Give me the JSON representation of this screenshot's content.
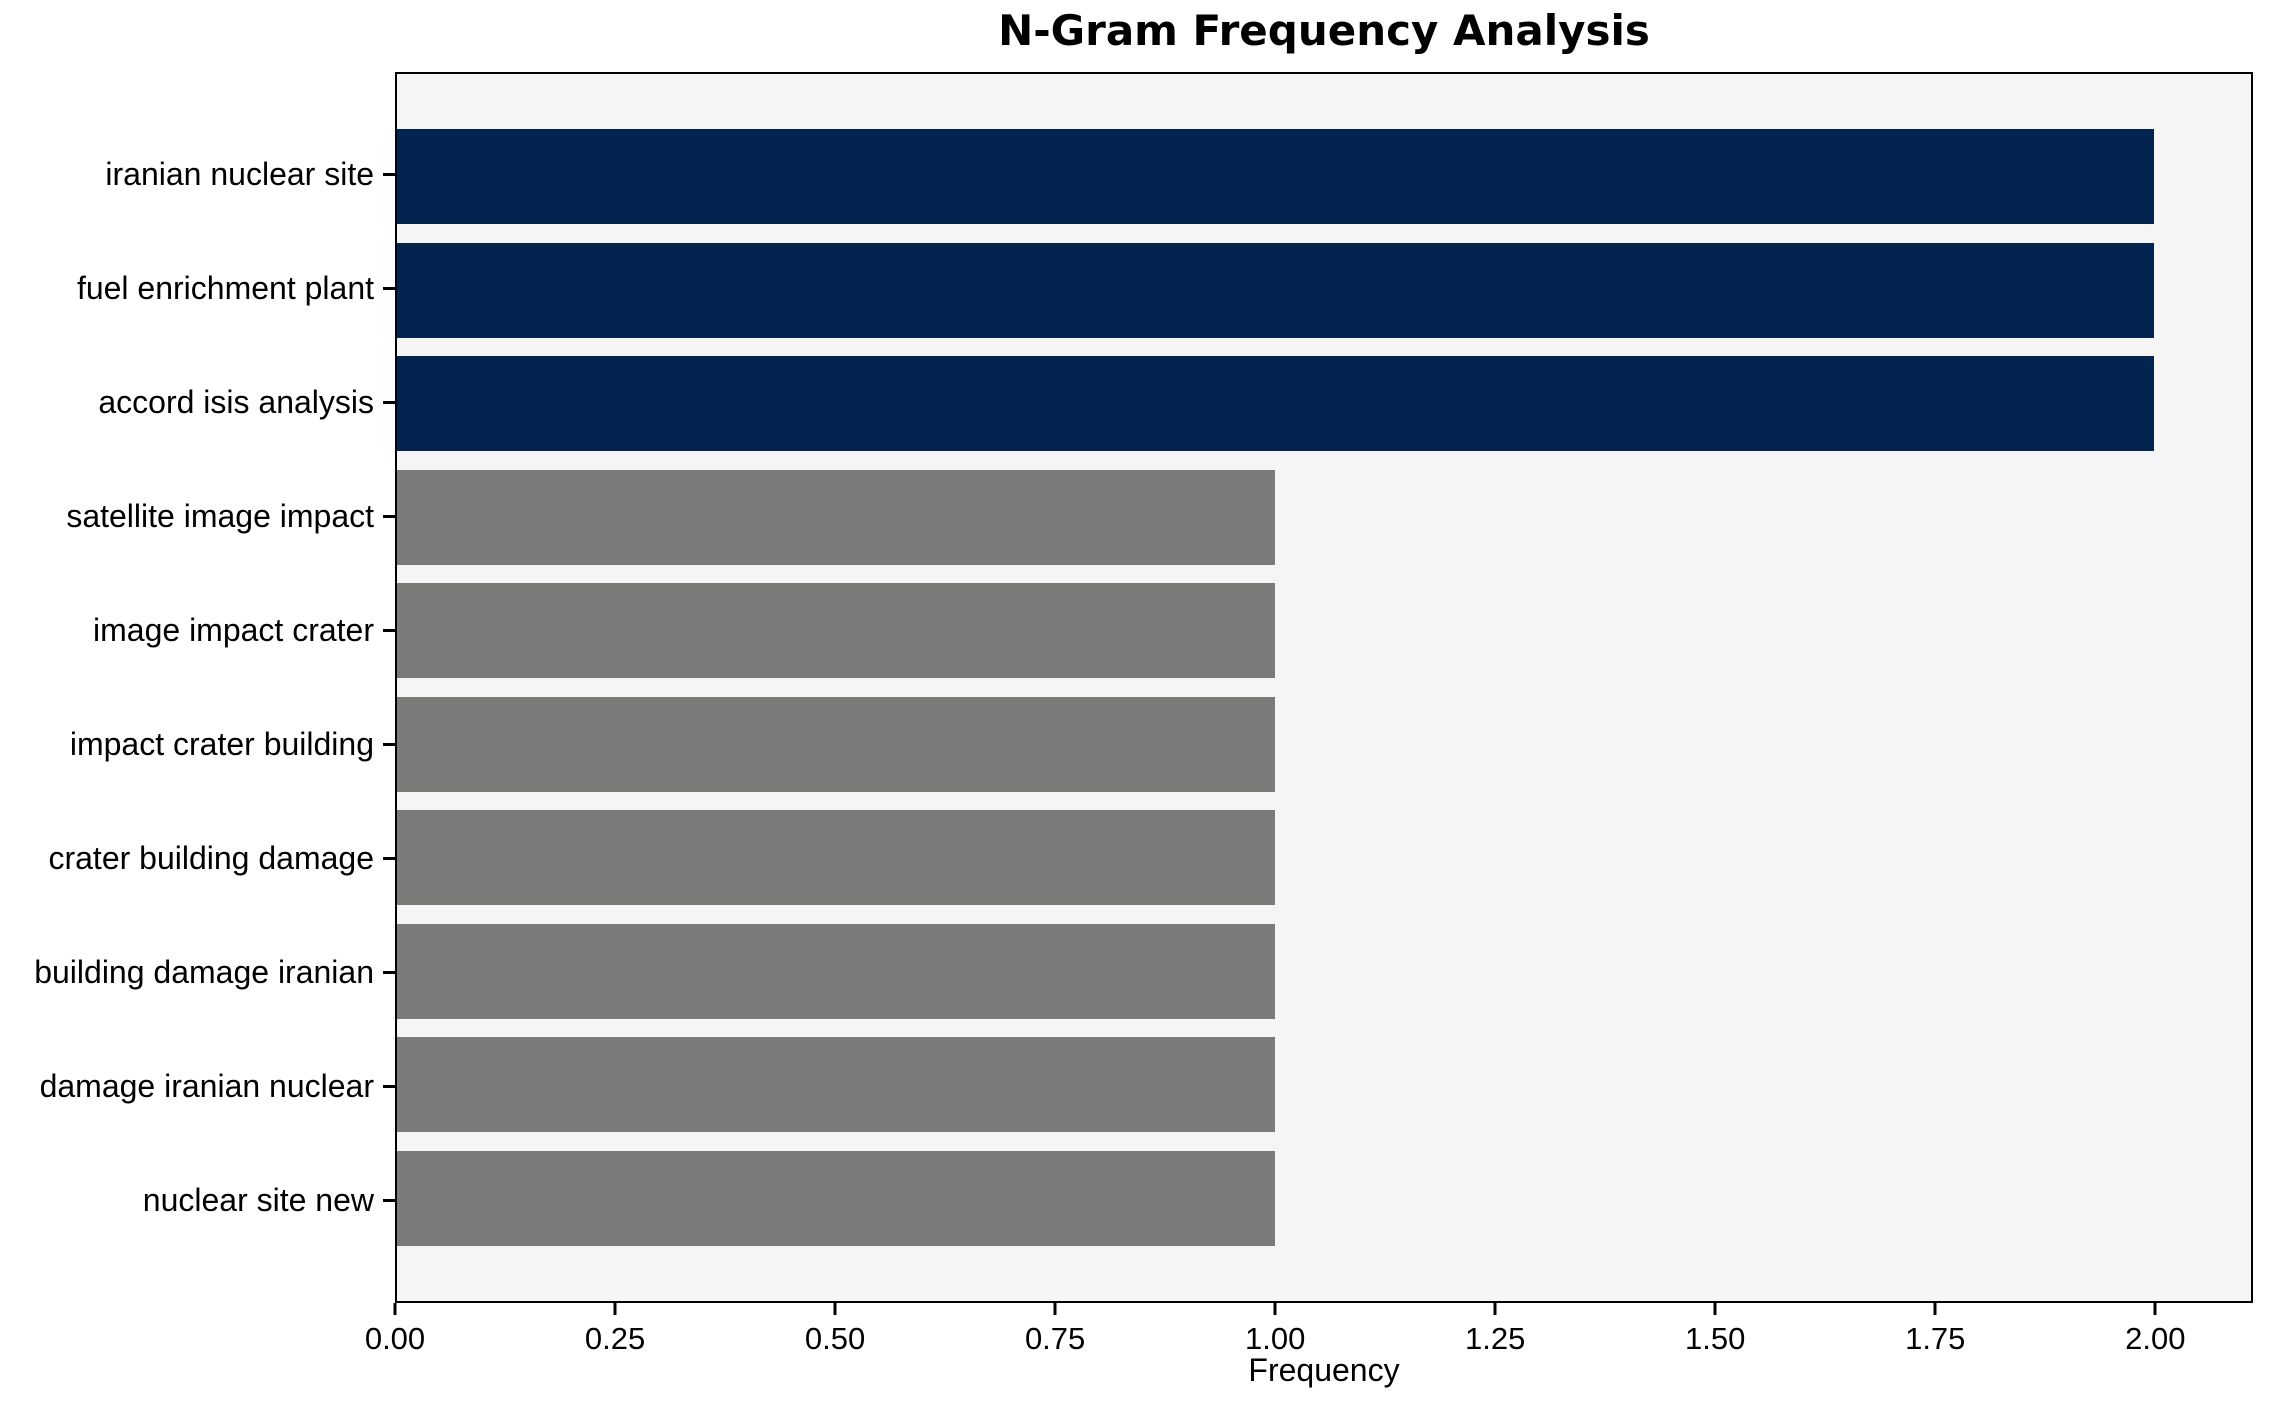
{
  "chart_data": {
    "type": "bar",
    "orientation": "horizontal",
    "title": "N-Gram Frequency Analysis",
    "xlabel": "Frequency",
    "ylabel": "",
    "categories": [
      "iranian nuclear site",
      "fuel enrichment plant",
      "accord isis analysis",
      "satellite image impact",
      "image impact crater",
      "impact crater building",
      "crater building damage",
      "building damage iranian",
      "damage iranian nuclear",
      "nuclear site new"
    ],
    "values": [
      2,
      2,
      2,
      1,
      1,
      1,
      1,
      1,
      1,
      1
    ],
    "bar_colors": [
      "#02244e",
      "#02244e",
      "#02244e",
      "#7a7a78",
      "#7a7a78",
      "#7a7a78",
      "#7a7a78",
      "#7a7a78",
      "#7a7a78",
      "#7a7a78"
    ],
    "xlim": [
      0,
      2.111
    ],
    "xticks": {
      "values": [
        0,
        0.25,
        0.5,
        0.75,
        1.0,
        1.25,
        1.5,
        1.75,
        2.0
      ],
      "labels": [
        "0.00",
        "0.25",
        "0.50",
        "0.75",
        "1.00",
        "1.25",
        "1.50",
        "1.75",
        "2.00"
      ]
    },
    "grid": false,
    "legend": "none",
    "colors": {
      "bar_high": "#02244e",
      "bar_low": "#7a7a78",
      "plot_background": "#f5f5f6",
      "figure_background": "#ffffff",
      "spine": "#000000",
      "text": "#000000"
    }
  }
}
